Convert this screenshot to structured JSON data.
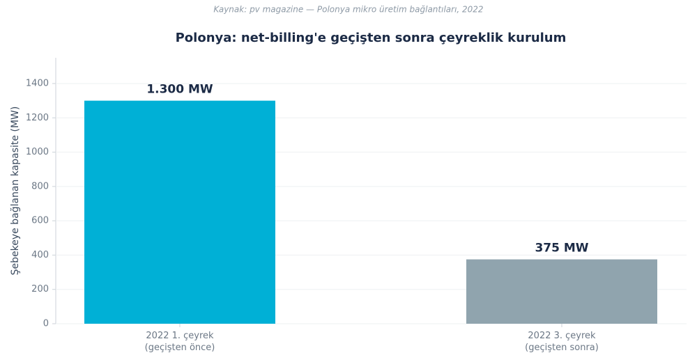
{
  "chart_data": {
    "type": "bar",
    "source": "Kaynak: pv magazine — Polonya mikro üretim bağlantıları, 2022",
    "title": "Polonya: net-billing'e geçişten sonra çeyreklik kurulum",
    "ylabel": "Şebekeye bağlanan kapasite (MW)",
    "categories": [
      "2022 1. çeyrek\n(geçişten önce)",
      "2022 3. çeyrek\n(geçişten sonra)"
    ],
    "values": [
      1300,
      375
    ],
    "value_labels": [
      "1.300 MW",
      "375 MW"
    ],
    "colors": [
      "#00b0d6",
      "#90a4ae"
    ],
    "ylim": [
      0,
      1550
    ],
    "yticks": [
      0,
      200,
      400,
      600,
      800,
      1000,
      1200,
      1400
    ],
    "grid": true
  }
}
